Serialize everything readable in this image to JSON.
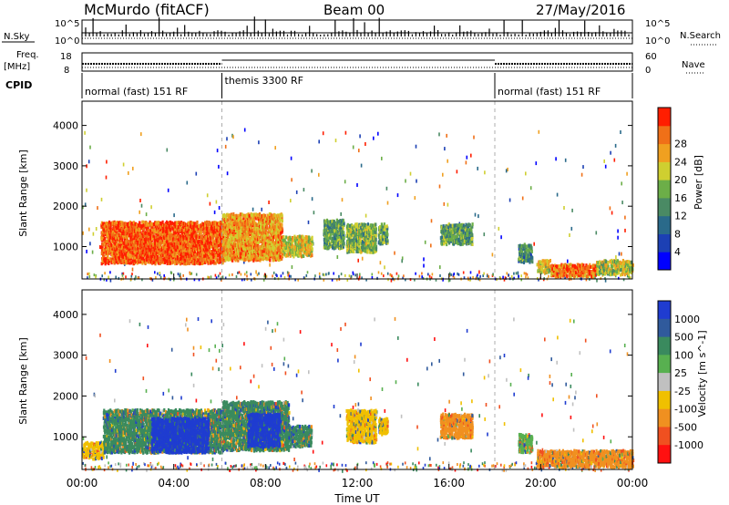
{
  "header": {
    "station": "McMurdo (fitACF)",
    "beam": "Beam 00",
    "date": "27/May/2016"
  },
  "top_panels": {
    "nsky_label": "N.Sky",
    "nsky_ticks": [
      "10^5",
      "10^0"
    ],
    "nsearch_label": "N.Search",
    "nsearch_ticks": [
      "10^5",
      "10^0"
    ],
    "freq_label_1": "Freq.",
    "freq_label_2": "[MHz]",
    "freq_ticks": [
      "18",
      "8"
    ],
    "nave_label": "Nave",
    "nave_ticks": [
      "60",
      "0"
    ],
    "cpid_label": "CPID",
    "cpid_segments": [
      {
        "label": "normal (fast) 151 RF",
        "start_hour": 0,
        "end_hour": 6.1
      },
      {
        "label": "themis 3300 RF",
        "start_hour": 6.1,
        "end_hour": 18.0
      },
      {
        "label": "normal (fast) 151 RF",
        "start_hour": 18.0,
        "end_hour": 24
      }
    ]
  },
  "chart_data": [
    {
      "type": "heatmap",
      "title": "",
      "xlabel": "",
      "ylabel": "Slant Range [km]",
      "xlim": [
        0,
        24
      ],
      "ylim": [
        200,
        4600
      ],
      "yticks": [
        1000,
        2000,
        3000,
        4000
      ],
      "colorbar": {
        "label": "Power [dB]",
        "ticks": [
          "4",
          "8",
          "12",
          "16",
          "20",
          "24",
          "28"
        ],
        "range": [
          0,
          32
        ],
        "colors": [
          "#0000ff",
          "#1c40b4",
          "#2a6a8a",
          "#4a8a64",
          "#6cae48",
          "#cfcf30",
          "#f0a020",
          "#f07018",
          "#ff1e00"
        ]
      },
      "regions": [
        {
          "t0": 0.8,
          "t1": 6.1,
          "r0": 620,
          "r1": 1650,
          "value": 28
        },
        {
          "t0": 6.1,
          "t1": 8.7,
          "r0": 700,
          "r1": 1850,
          "value": 24
        },
        {
          "t0": 8.7,
          "t1": 10.0,
          "r0": 800,
          "r1": 1300,
          "value": 20
        },
        {
          "t0": 10.5,
          "t1": 11.4,
          "r0": 1000,
          "r1": 1700,
          "value": 14
        },
        {
          "t0": 11.5,
          "t1": 12.8,
          "r0": 900,
          "r1": 1600,
          "value": 16
        },
        {
          "t0": 12.9,
          "t1": 13.3,
          "r0": 1100,
          "r1": 1600,
          "value": 14
        },
        {
          "t0": 15.6,
          "t1": 17.0,
          "r0": 1100,
          "r1": 1600,
          "value": 14
        },
        {
          "t0": 19.0,
          "t1": 19.6,
          "r0": 650,
          "r1": 1100,
          "value": 12
        },
        {
          "t0": 19.8,
          "t1": 20.4,
          "r0": 400,
          "r1": 700,
          "value": 20
        },
        {
          "t0": 20.4,
          "t1": 22.4,
          "r0": 300,
          "r1": 600,
          "value": 26
        },
        {
          "t0": 22.4,
          "t1": 24.0,
          "r0": 350,
          "r1": 700,
          "value": 18
        }
      ]
    },
    {
      "type": "heatmap",
      "title": "",
      "xlabel": "Time UT",
      "ylabel": "Slant Range [km]",
      "xlim": [
        0,
        24
      ],
      "ylim": [
        200,
        4600
      ],
      "yticks": [
        1000,
        2000,
        3000,
        4000
      ],
      "xticks": [
        "00:00",
        "04:00",
        "08:00",
        "12:00",
        "16:00",
        "20:00",
        "00:00"
      ],
      "colorbar": {
        "label": "Velocity [m s^-1]",
        "ticks": [
          "1000",
          "500",
          "100",
          "25",
          "-25",
          "-100",
          "-500",
          "-1000"
        ],
        "colors": [
          "#1f3cd0",
          "#305a9c",
          "#3a8a5e",
          "#58b050",
          "#c0c0c0",
          "#f0c000",
          "#f09020",
          "#f05020",
          "#ff1010"
        ]
      },
      "regions": [
        {
          "t0": 0.0,
          "t1": 0.9,
          "r0": 500,
          "r1": 900,
          "value": -100
        },
        {
          "t0": 0.9,
          "t1": 6.1,
          "r0": 650,
          "r1": 1700,
          "value": 100
        },
        {
          "t0": 3.0,
          "t1": 5.5,
          "r0": 650,
          "r1": 1500,
          "value": 1000
        },
        {
          "t0": 6.1,
          "t1": 9.0,
          "r0": 700,
          "r1": 1900,
          "value": 100
        },
        {
          "t0": 7.2,
          "t1": 8.6,
          "r0": 800,
          "r1": 1600,
          "value": 1000
        },
        {
          "t0": 9.0,
          "t1": 10.0,
          "r0": 800,
          "r1": 1300,
          "value": 100
        },
        {
          "t0": 11.5,
          "t1": 12.8,
          "r0": 900,
          "r1": 1700,
          "value": -100
        },
        {
          "t0": 12.9,
          "t1": 13.3,
          "r0": 1100,
          "r1": 1500,
          "value": -100
        },
        {
          "t0": 15.6,
          "t1": 17.0,
          "r0": 1000,
          "r1": 1600,
          "value": -500
        },
        {
          "t0": 19.0,
          "t1": 19.6,
          "r0": 650,
          "r1": 1100,
          "value": 25
        },
        {
          "t0": 19.8,
          "t1": 24.0,
          "r0": 300,
          "r1": 700,
          "value": -500
        }
      ]
    }
  ]
}
